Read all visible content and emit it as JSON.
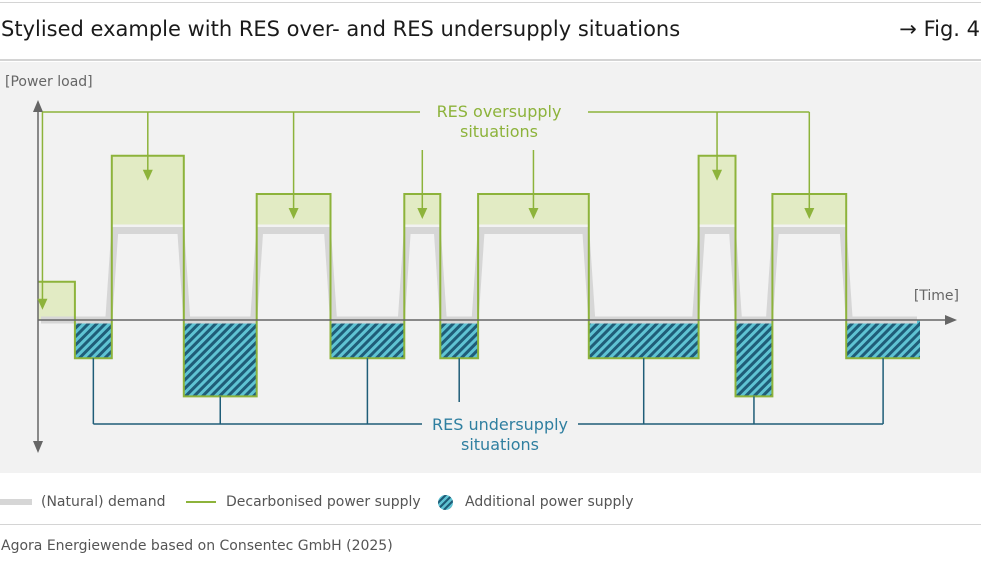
{
  "header": {
    "title": "Stylised example with RES over- and RES undersupply situations",
    "figure_ref": "→ Fig. 4"
  },
  "chart_data": {
    "type": "line",
    "ylabel": "[Power load]",
    "xlabel": "[Time]",
    "x_range": [
      0,
      100
    ],
    "y_range": [
      -3,
      5
    ],
    "segments": [
      {
        "start": 0,
        "end": 4.1,
        "demand": 0,
        "supply": 1
      },
      {
        "start": 4.1,
        "end": 8.2,
        "demand": 0,
        "supply": -1
      },
      {
        "start": 8.2,
        "end": 16.2,
        "demand": 2.5,
        "supply": 4.3
      },
      {
        "start": 16.2,
        "end": 24.3,
        "demand": 0,
        "supply": -2
      },
      {
        "start": 24.3,
        "end": 32.5,
        "demand": 2.5,
        "supply": 3.3
      },
      {
        "start": 32.5,
        "end": 40.7,
        "demand": 0,
        "supply": -1
      },
      {
        "start": 40.7,
        "end": 44.7,
        "demand": 2.5,
        "supply": 3.3
      },
      {
        "start": 44.7,
        "end": 48.9,
        "demand": 0,
        "supply": -1
      },
      {
        "start": 48.9,
        "end": 61.2,
        "demand": 2.5,
        "supply": 3.3
      },
      {
        "start": 61.2,
        "end": 73.4,
        "demand": 0,
        "supply": -1
      },
      {
        "start": 73.4,
        "end": 77.5,
        "demand": 2.5,
        "supply": 4.3
      },
      {
        "start": 77.5,
        "end": 81.6,
        "demand": 0,
        "supply": -2
      },
      {
        "start": 81.6,
        "end": 89.8,
        "demand": 2.5,
        "supply": 3.3
      },
      {
        "start": 89.8,
        "end": 98,
        "demand": 0,
        "supply": -1
      }
    ],
    "annotations": {
      "oversupply": [
        "RES oversupply",
        "situations"
      ],
      "undersupply": [
        "RES undersupply",
        "situations"
      ]
    },
    "colors": {
      "demand": "#d6d6d6",
      "supply": "#8db33b",
      "oversupply_fill": "#e2ebc4",
      "oversupply_text": "#8db33b",
      "undersupply_text": "#2f7fa0",
      "undersupply_connector": "#1f5d78",
      "hatch_dark": "#1f5d78",
      "hatch_light": "#5fc3d3",
      "axis": "#666666",
      "plot_background": "#f2f2f2"
    }
  },
  "legend": {
    "demand": "(Natural) demand",
    "supply": "Decarbonised power supply",
    "additional": "Additional power supply"
  },
  "footer": {
    "source": "Agora Energiewende based on Consentec GmbH (2025)"
  }
}
